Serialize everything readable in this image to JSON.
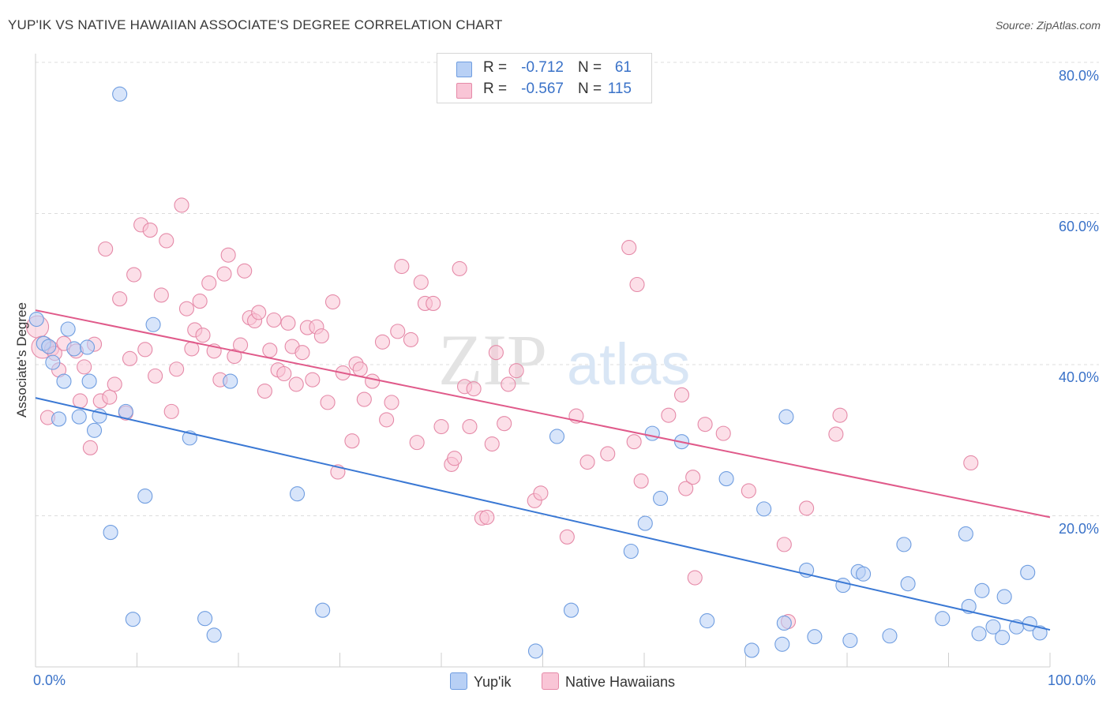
{
  "title": "YUP'IK VS NATIVE HAWAIIAN ASSOCIATE'S DEGREE CORRELATION CHART",
  "source": "Source: ZipAtlas.com",
  "watermark": {
    "zip": "ZIP",
    "atlas": "atlas"
  },
  "legend": {
    "r_label": "R =",
    "n_label": "N =",
    "rows": [
      {
        "r": "-0.712",
        "n": "61",
        "fill": "#b8d0f5",
        "stroke": "#6f9de0"
      },
      {
        "r": "-0.567",
        "n": "115",
        "fill": "#f9c5d6",
        "stroke": "#e58aa8"
      }
    ]
  },
  "bottom_legend": [
    {
      "name": "Yup'ik",
      "fill": "#b8d0f5",
      "stroke": "#6f9de0"
    },
    {
      "name": "Native Hawaiians",
      "fill": "#f9c5d6",
      "stroke": "#e58aa8"
    }
  ],
  "chart_data": {
    "type": "scatter",
    "title": "YUP'IK VS NATIVE HAWAIIAN ASSOCIATE'S DEGREE CORRELATION CHART",
    "xlabel": "",
    "ylabel": "Associate's Degree",
    "xlim": [
      0,
      100
    ],
    "ylim": [
      0,
      82
    ],
    "x_tick_labels": [
      "0.0%",
      "100.0%"
    ],
    "y_ticks": [
      20,
      40,
      60,
      80
    ],
    "y_tick_labels": [
      "20.0%",
      "40.0%",
      "60.0%",
      "80.0%"
    ],
    "grid": true,
    "legend_position": "top-center",
    "series": [
      {
        "name": "Yup'ik",
        "color": "#3a78d4",
        "fill": "#b8d0f5",
        "stroke": "#6f9de0",
        "trend": {
          "x": [
            0,
            100
          ],
          "y": [
            35.6,
            4.9
          ]
        },
        "points": [
          [
            0.1,
            46.0
          ],
          [
            0.8,
            42.8
          ],
          [
            1.3,
            42.4
          ],
          [
            1.7,
            40.3
          ],
          [
            2.3,
            32.8
          ],
          [
            2.8,
            37.8
          ],
          [
            3.2,
            44.7
          ],
          [
            3.8,
            42.1
          ],
          [
            4.3,
            33.1
          ],
          [
            5.1,
            42.3
          ],
          [
            5.3,
            37.8
          ],
          [
            5.8,
            31.3
          ],
          [
            6.3,
            33.2
          ],
          [
            7.4,
            17.8
          ],
          [
            8.3,
            75.8
          ],
          [
            8.9,
            33.8
          ],
          [
            9.6,
            6.3
          ],
          [
            10.8,
            22.6
          ],
          [
            11.6,
            45.3
          ],
          [
            15.2,
            30.3
          ],
          [
            16.7,
            6.4
          ],
          [
            17.6,
            4.2
          ],
          [
            19.2,
            37.8
          ],
          [
            25.8,
            22.9
          ],
          [
            28.3,
            7.5
          ],
          [
            49.3,
            2.1
          ],
          [
            51.4,
            30.5
          ],
          [
            52.8,
            7.5
          ],
          [
            58.7,
            15.3
          ],
          [
            60.1,
            19.0
          ],
          [
            60.8,
            30.9
          ],
          [
            61.6,
            22.3
          ],
          [
            63.7,
            29.8
          ],
          [
            66.2,
            6.1
          ],
          [
            68.1,
            24.9
          ],
          [
            70.6,
            2.2
          ],
          [
            71.8,
            20.9
          ],
          [
            73.6,
            3.0
          ],
          [
            73.8,
            5.8
          ],
          [
            74.0,
            33.1
          ],
          [
            76.0,
            12.8
          ],
          [
            76.8,
            4.0
          ],
          [
            79.6,
            10.8
          ],
          [
            80.3,
            3.5
          ],
          [
            81.1,
            12.6
          ],
          [
            81.6,
            12.3
          ],
          [
            84.2,
            4.1
          ],
          [
            85.6,
            16.2
          ],
          [
            86.0,
            11.0
          ],
          [
            89.4,
            6.4
          ],
          [
            91.7,
            17.6
          ],
          [
            92.0,
            8.0
          ],
          [
            93.0,
            4.4
          ],
          [
            93.3,
            10.1
          ],
          [
            94.4,
            5.3
          ],
          [
            95.3,
            3.9
          ],
          [
            95.5,
            9.3
          ],
          [
            96.7,
            5.3
          ],
          [
            97.8,
            12.5
          ],
          [
            98.0,
            5.7
          ],
          [
            99.0,
            4.5
          ]
        ]
      },
      {
        "name": "Native Hawaiians",
        "color": "#e05a8a",
        "fill": "#f9c5d6",
        "stroke": "#e58aa8",
        "trend": {
          "x": [
            0,
            100
          ],
          "y": [
            47.2,
            19.8
          ]
        },
        "points": [
          [
            0.2,
            45.0
          ],
          [
            0.7,
            42.3
          ],
          [
            1.2,
            33.0
          ],
          [
            1.6,
            42.1
          ],
          [
            1.9,
            41.5
          ],
          [
            2.3,
            39.3
          ],
          [
            2.8,
            42.8
          ],
          [
            4.0,
            41.8
          ],
          [
            4.4,
            35.2
          ],
          [
            4.8,
            39.7
          ],
          [
            5.4,
            29.0
          ],
          [
            5.8,
            42.7
          ],
          [
            6.4,
            35.2
          ],
          [
            6.9,
            55.3
          ],
          [
            7.3,
            35.7
          ],
          [
            7.8,
            37.4
          ],
          [
            8.3,
            48.7
          ],
          [
            8.9,
            33.6
          ],
          [
            9.3,
            40.8
          ],
          [
            9.7,
            51.9
          ],
          [
            10.4,
            58.5
          ],
          [
            10.8,
            42.0
          ],
          [
            11.3,
            57.8
          ],
          [
            11.8,
            38.5
          ],
          [
            12.4,
            49.2
          ],
          [
            12.9,
            56.4
          ],
          [
            13.4,
            33.8
          ],
          [
            13.9,
            39.4
          ],
          [
            14.4,
            61.1
          ],
          [
            14.9,
            47.4
          ],
          [
            15.4,
            42.1
          ],
          [
            15.7,
            44.6
          ],
          [
            16.2,
            48.4
          ],
          [
            16.5,
            43.9
          ],
          [
            17.1,
            50.8
          ],
          [
            17.6,
            41.8
          ],
          [
            18.2,
            38.0
          ],
          [
            18.6,
            52.0
          ],
          [
            19.0,
            54.5
          ],
          [
            19.6,
            41.1
          ],
          [
            20.2,
            42.6
          ],
          [
            20.6,
            52.4
          ],
          [
            21.1,
            46.2
          ],
          [
            21.6,
            45.8
          ],
          [
            22.0,
            46.9
          ],
          [
            22.6,
            36.5
          ],
          [
            23.1,
            41.9
          ],
          [
            23.5,
            45.9
          ],
          [
            23.9,
            39.3
          ],
          [
            24.5,
            38.8
          ],
          [
            24.9,
            45.5
          ],
          [
            25.3,
            42.4
          ],
          [
            25.7,
            37.4
          ],
          [
            26.3,
            41.6
          ],
          [
            26.8,
            44.9
          ],
          [
            27.3,
            38.0
          ],
          [
            27.7,
            45.0
          ],
          [
            28.2,
            43.8
          ],
          [
            28.8,
            35.0
          ],
          [
            29.3,
            48.3
          ],
          [
            29.8,
            25.8
          ],
          [
            30.3,
            38.9
          ],
          [
            31.2,
            29.9
          ],
          [
            31.6,
            40.1
          ],
          [
            32.0,
            39.4
          ],
          [
            32.4,
            35.4
          ],
          [
            33.2,
            37.8
          ],
          [
            34.2,
            43.0
          ],
          [
            34.6,
            32.7
          ],
          [
            35.1,
            35.0
          ],
          [
            35.7,
            44.4
          ],
          [
            36.1,
            53.0
          ],
          [
            37.0,
            43.3
          ],
          [
            37.6,
            29.7
          ],
          [
            38.0,
            50.9
          ],
          [
            38.4,
            48.1
          ],
          [
            39.2,
            48.1
          ],
          [
            40.0,
            31.8
          ],
          [
            41.0,
            26.8
          ],
          [
            41.3,
            27.6
          ],
          [
            41.8,
            52.7
          ],
          [
            42.3,
            37.1
          ],
          [
            42.8,
            31.8
          ],
          [
            43.2,
            36.8
          ],
          [
            44.0,
            19.7
          ],
          [
            44.5,
            19.8
          ],
          [
            45.0,
            29.5
          ],
          [
            45.4,
            41.6
          ],
          [
            46.2,
            32.2
          ],
          [
            46.6,
            37.4
          ],
          [
            47.4,
            39.2
          ],
          [
            49.2,
            22.0
          ],
          [
            49.8,
            23.0
          ],
          [
            52.4,
            17.2
          ],
          [
            53.3,
            33.2
          ],
          [
            54.4,
            27.1
          ],
          [
            56.4,
            28.2
          ],
          [
            58.5,
            55.5
          ],
          [
            59.0,
            29.8
          ],
          [
            59.3,
            50.6
          ],
          [
            59.7,
            24.6
          ],
          [
            62.4,
            33.3
          ],
          [
            63.7,
            36.0
          ],
          [
            64.1,
            23.6
          ],
          [
            64.8,
            25.1
          ],
          [
            65.0,
            11.8
          ],
          [
            66.0,
            32.1
          ],
          [
            67.8,
            30.9
          ],
          [
            70.3,
            23.3
          ],
          [
            73.8,
            16.2
          ],
          [
            74.2,
            6.0
          ],
          [
            76.0,
            21.0
          ],
          [
            78.9,
            30.8
          ],
          [
            79.3,
            33.3
          ],
          [
            92.2,
            27.0
          ]
        ]
      }
    ]
  }
}
